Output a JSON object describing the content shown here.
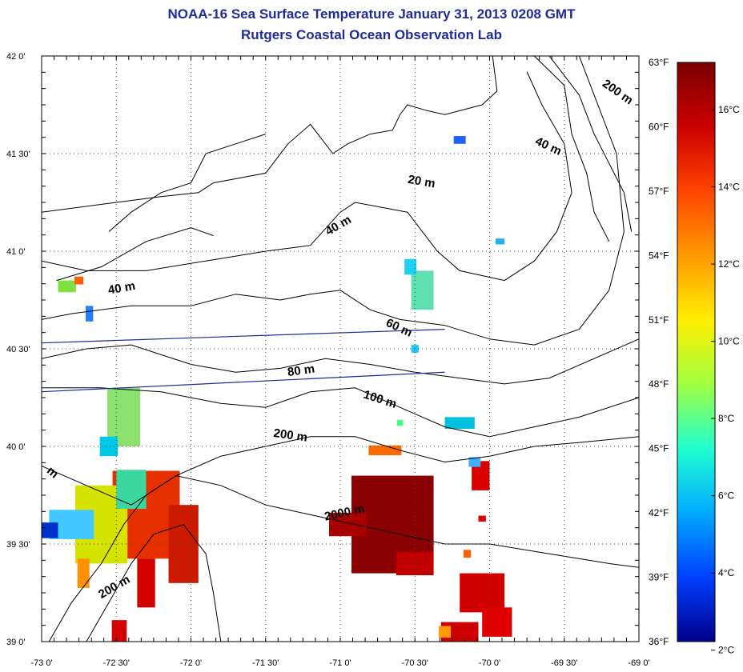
{
  "header": {
    "title": "NOAA-16 Sea Surface Temperature January 31, 2013 0208 GMT",
    "subtitle": "Rutgers Coastal Ocean Observation Lab"
  },
  "map": {
    "lat_range": [
      39.0,
      42.0
    ],
    "lon_range": [
      -73.0,
      -69.0
    ],
    "lat_labels": [
      "39 0'",
      "39 30'",
      "40 0'",
      "40 30'",
      "41 0'",
      "41 30'",
      "42 0'"
    ],
    "lat_values": [
      39.0,
      39.5,
      40.0,
      40.5,
      41.0,
      41.5,
      42.0
    ],
    "lon_labels": [
      "-73 0'",
      "-72 30'",
      "-72 0'",
      "-71 30'",
      "-71 0'",
      "-70 30'",
      "-70 0'",
      "-69 30'",
      "-69 0'"
    ],
    "lon_values": [
      -73.0,
      -72.5,
      -72.0,
      -71.5,
      -71.0,
      -70.5,
      -70.0,
      -69.5,
      -69.0
    ],
    "grid": true,
    "contour_labels": [
      {
        "text": "200 m",
        "lon": -69.25,
        "lat": 41.85,
        "rot": 35
      },
      {
        "text": "40 m",
        "lon": -69.7,
        "lat": 41.55,
        "rot": 25
      },
      {
        "text": "20 m",
        "lon": -70.55,
        "lat": 41.35,
        "rot": 10
      },
      {
        "text": "40 m",
        "lon": -71.08,
        "lat": 41.08,
        "rot": -30
      },
      {
        "text": "40 m",
        "lon": -72.55,
        "lat": 40.78,
        "rot": -10
      },
      {
        "text": "60 m",
        "lon": -70.7,
        "lat": 40.62,
        "rot": 25
      },
      {
        "text": "80 m",
        "lon": -71.35,
        "lat": 40.36,
        "rot": -8
      },
      {
        "text": "100 m",
        "lon": -70.85,
        "lat": 40.25,
        "rot": 18
      },
      {
        "text": "200 m",
        "lon": -71.45,
        "lat": 40.05,
        "rot": 8
      },
      {
        "text": "2000 m",
        "lon": -71.1,
        "lat": 39.62,
        "rot": -12
      },
      {
        "text": "200 m",
        "lon": -72.6,
        "lat": 39.22,
        "rot": -30
      },
      {
        "text": "m",
        "lon": -72.97,
        "lat": 39.87,
        "rot": 40
      }
    ],
    "temperature_patches": [
      {
        "lon": -70.65,
        "lat": 39.6,
        "w": 0.55,
        "h": 0.5,
        "c": "#8b0000"
      },
      {
        "lon": -70.95,
        "lat": 39.6,
        "w": 0.25,
        "h": 0.12,
        "c": "#a80000"
      },
      {
        "lon": -70.5,
        "lat": 39.4,
        "w": 0.25,
        "h": 0.12,
        "c": "#c00000"
      },
      {
        "lon": -72.3,
        "lat": 39.65,
        "w": 0.45,
        "h": 0.45,
        "c": "#e63000"
      },
      {
        "lon": -72.05,
        "lat": 39.5,
        "w": 0.2,
        "h": 0.4,
        "c": "#cc1a00"
      },
      {
        "lon": -72.6,
        "lat": 39.6,
        "w": 0.35,
        "h": 0.4,
        "c": "#d6e200"
      },
      {
        "lon": -72.4,
        "lat": 39.78,
        "w": 0.2,
        "h": 0.2,
        "c": "#3cd6a0"
      },
      {
        "lon": -72.8,
        "lat": 39.6,
        "w": 0.3,
        "h": 0.15,
        "c": "#40c8ff"
      },
      {
        "lon": -72.95,
        "lat": 39.57,
        "w": 0.12,
        "h": 0.08,
        "c": "#0030cc"
      },
      {
        "lon": -72.3,
        "lat": 39.3,
        "w": 0.12,
        "h": 0.25,
        "c": "#d40000"
      },
      {
        "lon": -72.72,
        "lat": 39.35,
        "w": 0.08,
        "h": 0.15,
        "c": "#ff9000"
      },
      {
        "lon": -72.45,
        "lat": 40.15,
        "w": 0.22,
        "h": 0.3,
        "c": "#8ce070"
      },
      {
        "lon": -72.55,
        "lat": 40.0,
        "w": 0.12,
        "h": 0.1,
        "c": "#00c8e8"
      },
      {
        "lon": -72.48,
        "lat": 39.05,
        "w": 0.1,
        "h": 0.12,
        "c": "#d60000"
      },
      {
        "lon": -70.05,
        "lat": 39.25,
        "w": 0.3,
        "h": 0.2,
        "c": "#d00000"
      },
      {
        "lon": -69.95,
        "lat": 39.1,
        "w": 0.2,
        "h": 0.15,
        "c": "#e00000"
      },
      {
        "lon": -70.2,
        "lat": 39.05,
        "w": 0.25,
        "h": 0.1,
        "c": "#cc0000"
      },
      {
        "lon": -70.3,
        "lat": 39.05,
        "w": 0.08,
        "h": 0.06,
        "c": "#ff9a00"
      },
      {
        "lon": -70.06,
        "lat": 39.85,
        "w": 0.12,
        "h": 0.15,
        "c": "#d80000"
      },
      {
        "lon": -70.1,
        "lat": 39.92,
        "w": 0.08,
        "h": 0.05,
        "c": "#40b0ff"
      },
      {
        "lon": -70.7,
        "lat": 39.98,
        "w": 0.22,
        "h": 0.05,
        "c": "#ff6a00"
      },
      {
        "lon": -70.45,
        "lat": 40.8,
        "w": 0.15,
        "h": 0.2,
        "c": "#60e0b0"
      },
      {
        "lon": -70.53,
        "lat": 40.92,
        "w": 0.08,
        "h": 0.08,
        "c": "#20d0f0"
      },
      {
        "lon": -70.2,
        "lat": 41.57,
        "w": 0.08,
        "h": 0.04,
        "c": "#2060ff"
      },
      {
        "lon": -72.83,
        "lat": 40.82,
        "w": 0.12,
        "h": 0.06,
        "c": "#80e040"
      },
      {
        "lon": -72.75,
        "lat": 40.85,
        "w": 0.06,
        "h": 0.04,
        "c": "#ff6000"
      },
      {
        "lon": -72.68,
        "lat": 40.68,
        "w": 0.05,
        "h": 0.08,
        "c": "#2080ff"
      },
      {
        "lon": -70.5,
        "lat": 40.5,
        "w": 0.05,
        "h": 0.04,
        "c": "#20c8ff"
      },
      {
        "lon": -70.6,
        "lat": 40.12,
        "w": 0.04,
        "h": 0.03,
        "c": "#40ff80"
      },
      {
        "lon": -70.2,
        "lat": 40.12,
        "w": 0.2,
        "h": 0.06,
        "c": "#00c0e0"
      },
      {
        "lon": -69.93,
        "lat": 41.05,
        "w": 0.06,
        "h": 0.03,
        "c": "#20b0ff"
      },
      {
        "lon": -70.05,
        "lat": 39.63,
        "w": 0.05,
        "h": 0.03,
        "c": "#e00000"
      },
      {
        "lon": -70.15,
        "lat": 39.45,
        "w": 0.05,
        "h": 0.04,
        "c": "#ff6000"
      }
    ]
  },
  "colorbar": {
    "f_labels": [
      "63°F",
      "60°F",
      "57°F",
      "54°F",
      "51°F",
      "48°F",
      "45°F",
      "42°F",
      "39°F",
      "36°F"
    ],
    "f_values": [
      63,
      60,
      57,
      54,
      51,
      48,
      45,
      42,
      39,
      36
    ],
    "c_labels": [
      "16°C",
      "14°C",
      "12°C",
      "10°C",
      "8°C",
      "6°C",
      "4°C",
      "2°C"
    ],
    "c_values": [
      16,
      14,
      12,
      10,
      8,
      6,
      4,
      2
    ],
    "stops": [
      "#7a0000",
      "#cc0000",
      "#ff4400",
      "#ff9900",
      "#ffee00",
      "#a0ff40",
      "#20ffd0",
      "#00aaff",
      "#0040ff",
      "#00008b"
    ]
  }
}
